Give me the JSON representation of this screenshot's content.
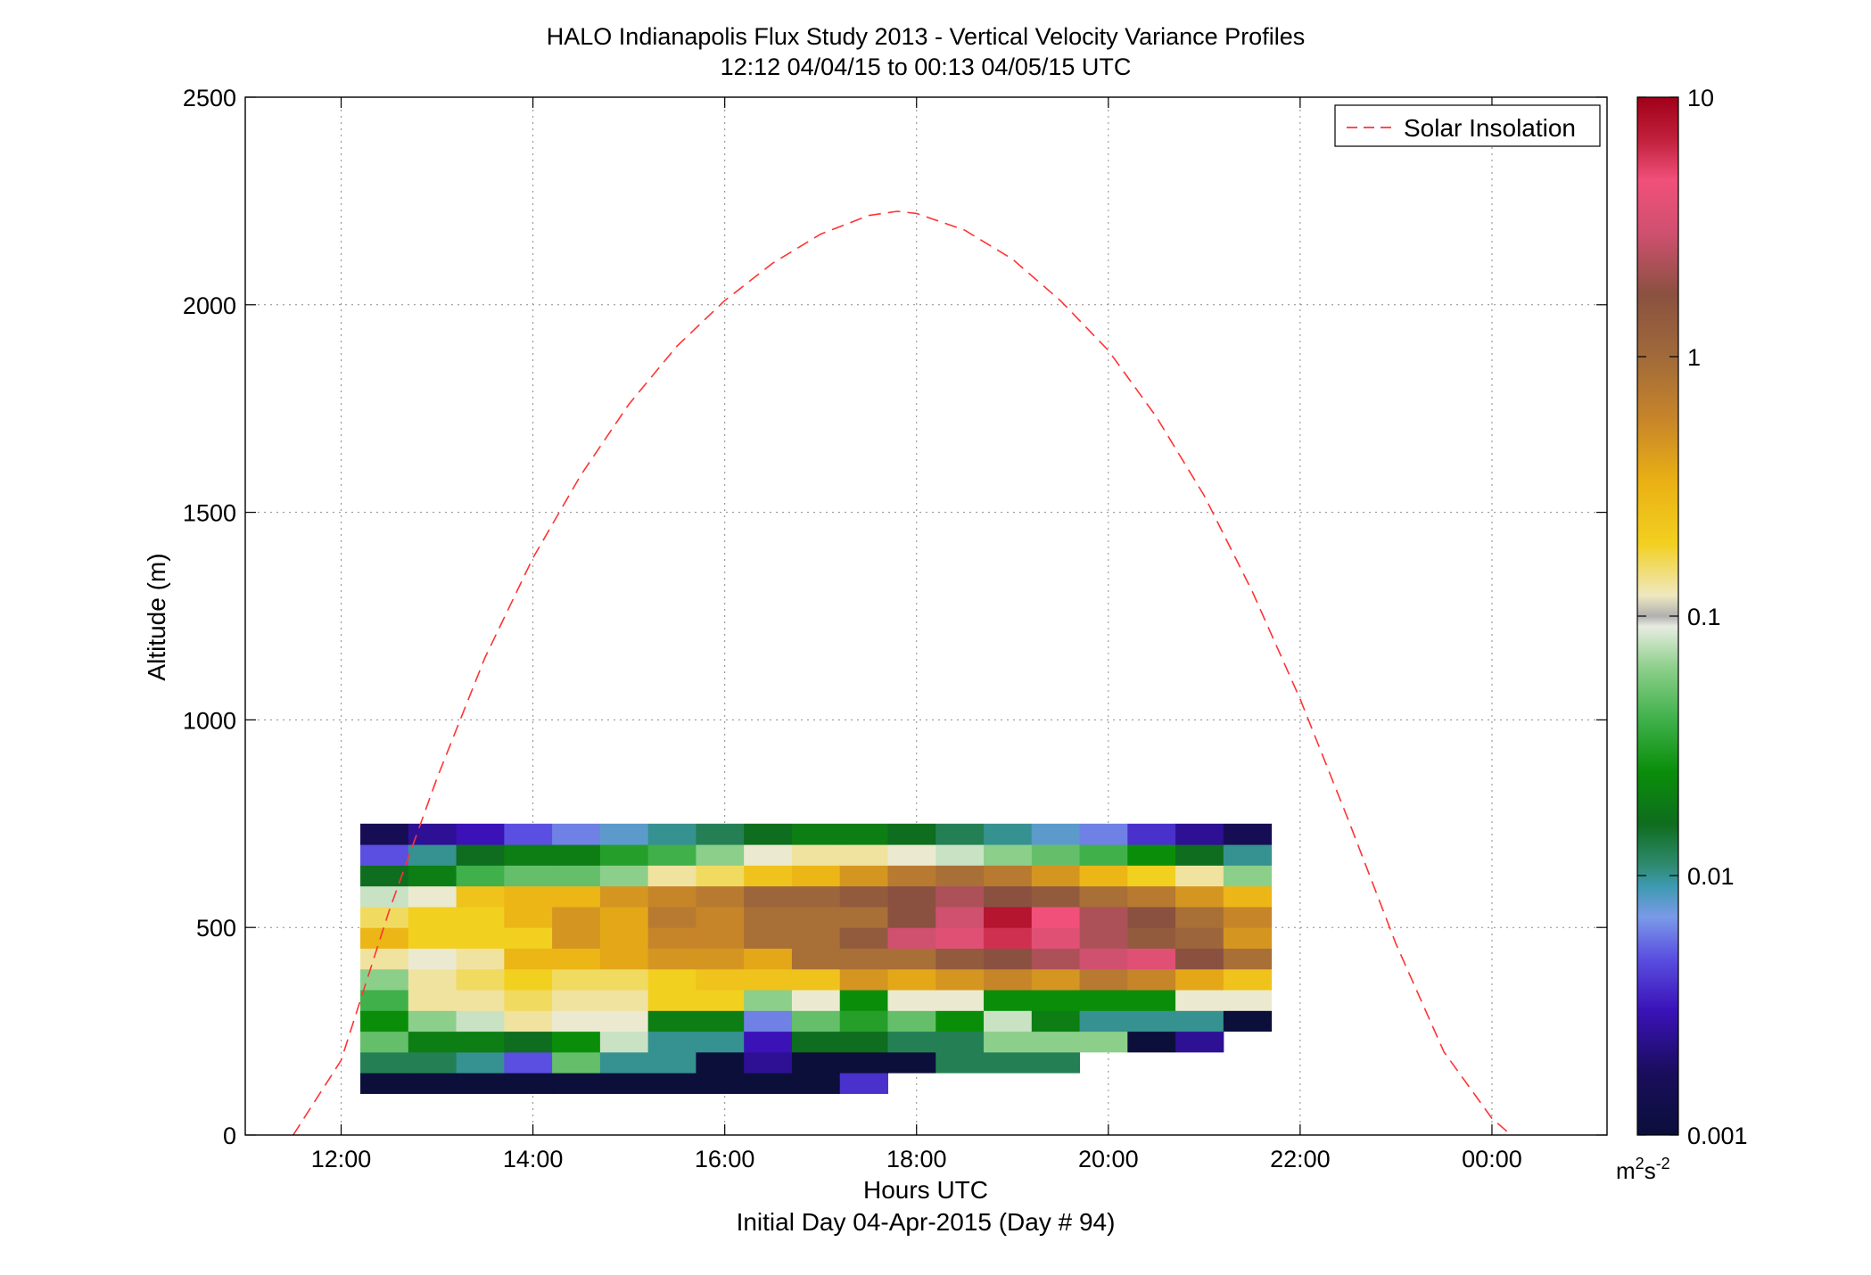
{
  "chart_data": {
    "type": "heatmap",
    "title": "HALO Indianapolis Flux Study 2013 - Vertical Velocity Variance Profiles",
    "subtitle": "12:12 04/04/15 to 00:13 04/05/15  UTC",
    "xlabel": "Hours UTC",
    "xlabel2": "Initial Day 04-Apr-2015 (Day # 94)",
    "ylabel": "Altitude (m)",
    "xlim": [
      11.0,
      25.2
    ],
    "ylim": [
      0,
      2500
    ],
    "x_ticks": [
      12,
      14,
      16,
      18,
      20,
      22,
      24
    ],
    "x_tick_labels": [
      "12:00",
      "14:00",
      "16:00",
      "18:00",
      "20:00",
      "22:00",
      "00:00"
    ],
    "y_ticks": [
      0,
      500,
      1000,
      1500,
      2000,
      2500
    ],
    "y_tick_labels": [
      "0",
      "500",
      "1000",
      "1500",
      "2000",
      "2500"
    ],
    "grid": true,
    "legend": {
      "position": "top-right",
      "entries": [
        {
          "label": "Solar Insolation",
          "color": "#ff3333",
          "style": "dashed"
        }
      ]
    },
    "colorbar": {
      "scale": "log",
      "range": [
        0.001,
        10
      ],
      "ticks": [
        0.001,
        0.01,
        0.1,
        1,
        10
      ],
      "tick_labels": [
        "0.001",
        "0.01",
        "0.1",
        "1",
        "10"
      ],
      "unit_base": "m",
      "unit_sup1": "2",
      "unit_mid": "s",
      "unit_sup2": "-2"
    },
    "cells_spec": {
      "time_start": 12.2,
      "time_step": 0.5,
      "alt_base": 100,
      "alt_step": 50,
      "value_scale": "log10 m2s-2",
      "null_marker": null
    },
    "cells_log10": [
      [
        -3.0,
        -3.0,
        -3.0,
        -3.0,
        -3.0,
        -3.0,
        -3.0,
        -3.0,
        -3.0,
        -3.0,
        -2.4,
        null,
        null,
        null,
        null,
        null,
        null,
        null,
        null
      ],
      [
        -1.9,
        -1.9,
        -2.0,
        -2.3,
        -1.3,
        -2.0,
        -2.0,
        -3.0,
        -2.6,
        -3.0,
        -3.0,
        -3.0,
        -1.9,
        -1.9,
        -1.9,
        null,
        null,
        null,
        null
      ],
      [
        -1.3,
        -1.7,
        -1.7,
        -1.8,
        -1.6,
        -1.1,
        -2.0,
        -2.0,
        -2.5,
        -1.8,
        -1.8,
        -1.9,
        -1.9,
        -1.2,
        -1.2,
        -1.2,
        -3.0,
        -2.6,
        null
      ],
      [
        -1.6,
        -1.2,
        -1.1,
        -0.9,
        -1.0,
        -1.0,
        -1.7,
        -1.7,
        -2.2,
        -1.3,
        -1.5,
        -1.3,
        -1.6,
        -1.1,
        -1.7,
        -2.0,
        -2.0,
        -2.0,
        -3.0
      ],
      [
        -1.4,
        -0.9,
        -0.9,
        -0.8,
        -0.9,
        -0.9,
        -0.7,
        -0.7,
        -1.2,
        -1.0,
        -1.6,
        -1.0,
        -1.0,
        -1.6,
        -1.6,
        -1.6,
        -1.6,
        -1.0,
        -1.0
      ],
      [
        -1.2,
        -0.9,
        -0.8,
        -0.7,
        -0.8,
        -0.8,
        -0.7,
        -0.6,
        -0.6,
        -0.6,
        -0.3,
        -0.4,
        -0.3,
        -0.2,
        -0.3,
        -0.1,
        -0.2,
        -0.4,
        -0.6
      ],
      [
        -0.9,
        -1.0,
        -0.9,
        -0.5,
        -0.5,
        -0.4,
        -0.3,
        -0.3,
        -0.4,
        0.0,
        0.0,
        0.0,
        0.2,
        0.3,
        0.4,
        0.5,
        0.6,
        0.3,
        0.0
      ],
      [
        -0.5,
        -0.7,
        -0.7,
        -0.7,
        -0.3,
        -0.4,
        -0.2,
        -0.2,
        0.0,
        0.0,
        0.2,
        0.5,
        0.6,
        0.8,
        0.6,
        0.4,
        0.2,
        0.1,
        -0.3
      ],
      [
        -0.8,
        -0.7,
        -0.7,
        -0.5,
        -0.3,
        -0.4,
        -0.1,
        -0.2,
        0.0,
        0.0,
        0.0,
        0.3,
        0.5,
        0.9,
        0.7,
        0.4,
        0.3,
        0.0,
        -0.2
      ],
      [
        -1.1,
        -1.0,
        -0.6,
        -0.5,
        -0.5,
        -0.3,
        -0.2,
        -0.1,
        0.1,
        0.1,
        0.2,
        0.3,
        0.4,
        0.3,
        0.2,
        0.0,
        -0.1,
        -0.3,
        -0.5
      ],
      [
        -1.8,
        -1.7,
        -1.4,
        -1.3,
        -1.3,
        -1.2,
        -0.9,
        -0.8,
        -0.6,
        -0.5,
        -0.3,
        -0.1,
        0.0,
        -0.1,
        -0.3,
        -0.5,
        -0.7,
        -0.9,
        -1.2
      ],
      [
        -2.3,
        -2.0,
        -1.8,
        -1.7,
        -1.7,
        -1.5,
        -1.4,
        -1.2,
        -1.0,
        -0.9,
        -0.9,
        -1.0,
        -1.1,
        -1.2,
        -1.3,
        -1.4,
        -1.6,
        -1.8,
        -2.0
      ],
      [
        -2.8,
        -2.6,
        -2.5,
        -2.3,
        -2.2,
        -2.1,
        -2.0,
        -1.9,
        -1.8,
        -1.7,
        -1.7,
        -1.8,
        -1.9,
        -2.0,
        -2.1,
        -2.2,
        -2.4,
        -2.6,
        -2.8
      ]
    ],
    "solar_curve": {
      "label": "Solar Insolation",
      "x_hours": [
        11.5,
        12.0,
        12.5,
        13.0,
        13.5,
        14.0,
        14.5,
        15.0,
        15.5,
        16.0,
        16.5,
        17.0,
        17.5,
        17.8,
        18.0,
        18.5,
        19.0,
        19.5,
        20.0,
        20.5,
        21.0,
        21.5,
        22.0,
        22.5,
        23.0,
        23.5,
        24.0,
        24.2
      ],
      "y_altitude": [
        0,
        180,
        540,
        860,
        1150,
        1390,
        1590,
        1760,
        1900,
        2010,
        2100,
        2170,
        2215,
        2225,
        2220,
        2180,
        2110,
        2010,
        1890,
        1730,
        1540,
        1310,
        1050,
        760,
        460,
        200,
        40,
        0
      ]
    }
  }
}
